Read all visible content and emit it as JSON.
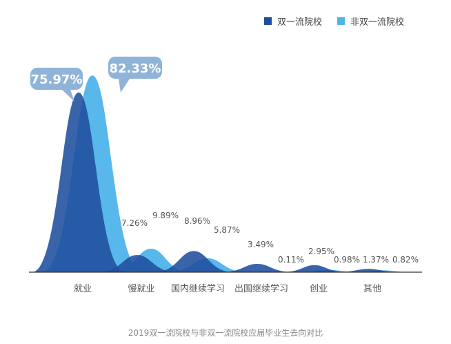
{
  "chart_data": {
    "type": "area",
    "categories": [
      "就业",
      "慢就业",
      "国内继续学习",
      "出国继续学习",
      "创业",
      "其他"
    ],
    "series": [
      {
        "name": "双一流院校",
        "values": [
          75.97,
          7.26,
          8.96,
          3.49,
          2.95,
          1.37
        ]
      },
      {
        "name": "非双一流院校",
        "values": [
          82.33,
          9.89,
          5.87,
          0.11,
          0.98,
          0.82
        ]
      }
    ],
    "data_labels": [
      "75.97%",
      "82.33%",
      "7.26%",
      "9.89%",
      "8.96%",
      "5.87%",
      "3.49%",
      "0.11%",
      "2.95%",
      "0.98%",
      "1.37%",
      "0.82%"
    ],
    "title": "2019双一流院校与非双一流院校应届毕业生去向对比",
    "legend_position": "top-right",
    "grid": false,
    "ylim": [
      0,
      85
    ],
    "colors": {
      "series1": "#1f4e9e",
      "series2": "#4fb3ea",
      "bubble": "#8fb4d8",
      "axis": "#333333"
    }
  }
}
